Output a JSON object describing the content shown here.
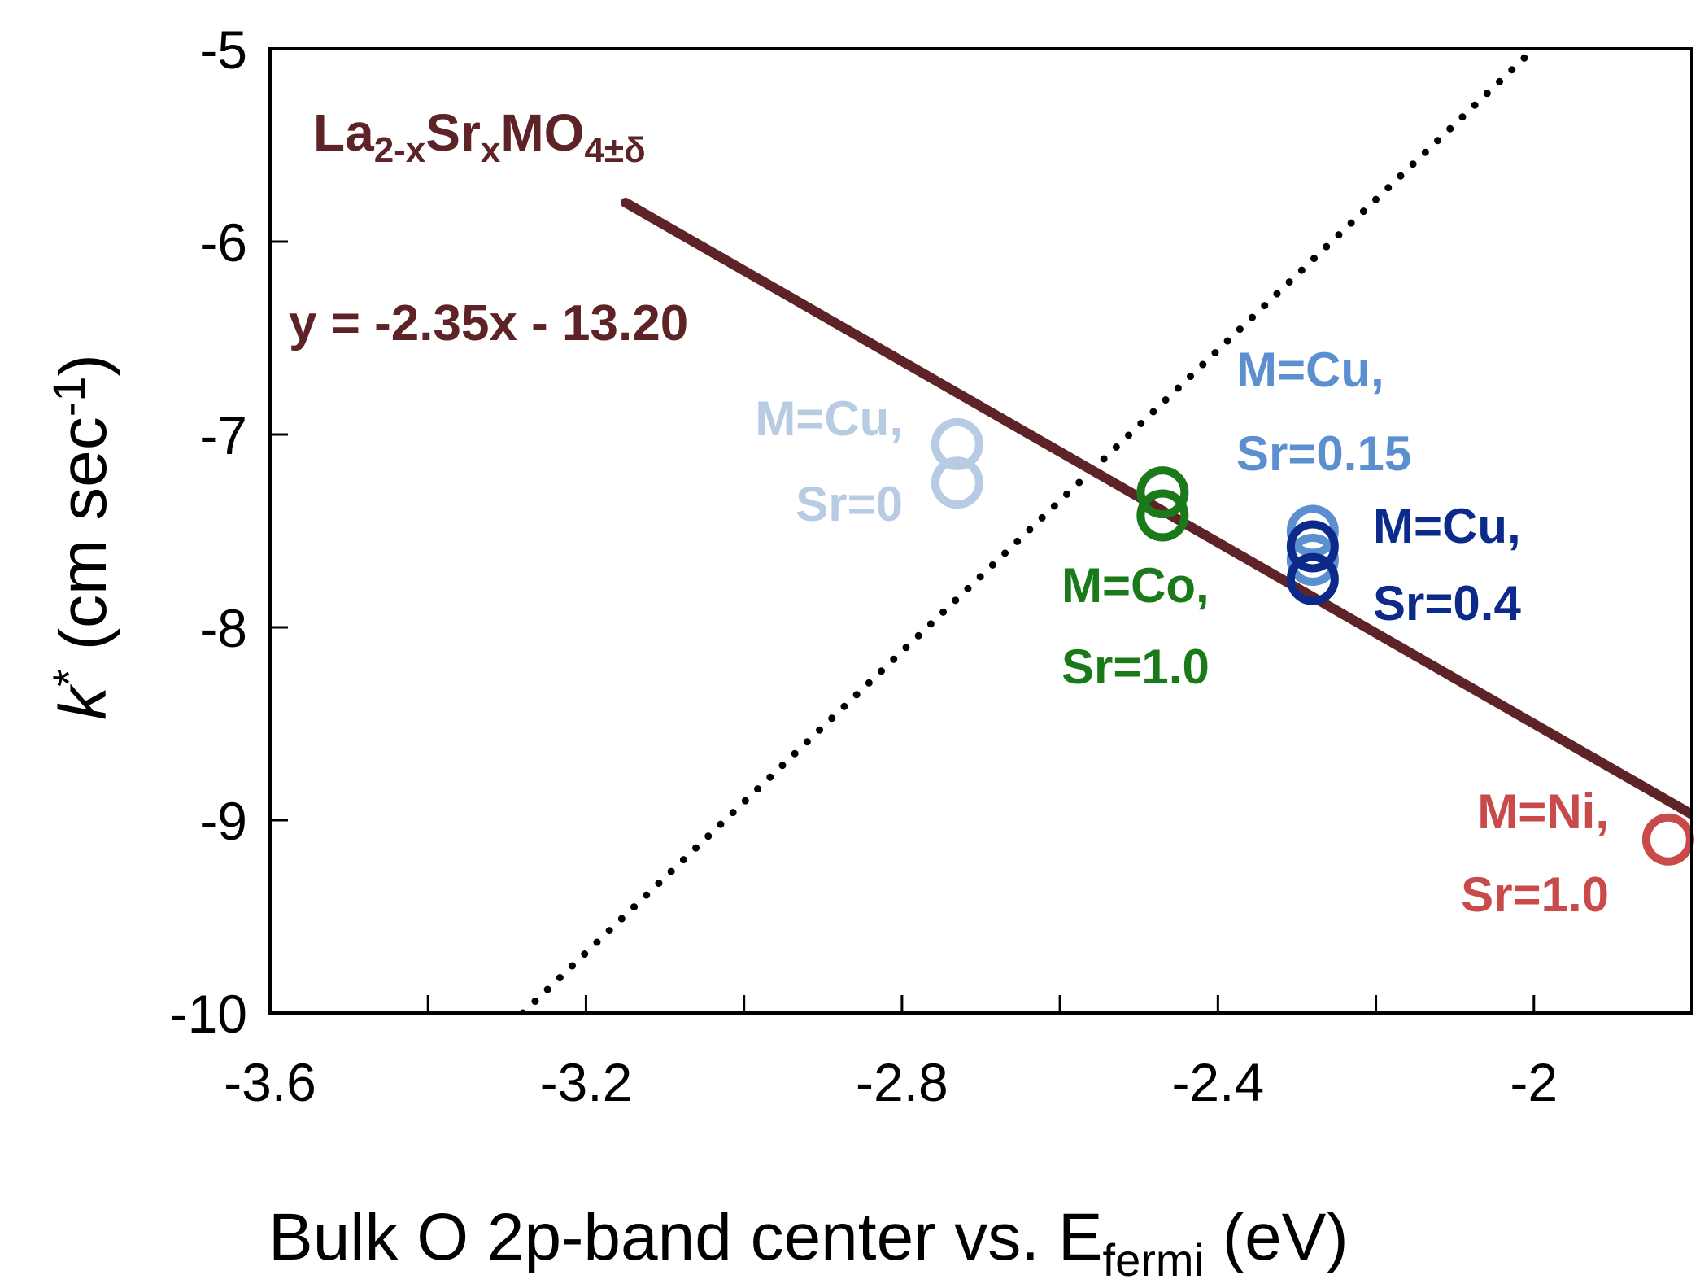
{
  "chart_data": {
    "type": "scatter",
    "title": "",
    "xlabel": "Bulk O 2p-band center vs. E",
    "xlabel_sub": "fermi",
    "xlabel_unit": " (eV)",
    "ylabel_k": "k",
    "ylabel_star": "*",
    "ylabel_units": " (cm sec",
    "ylabel_exp": "-1",
    "ylabel_close": ")",
    "xlim": [
      -3.6,
      -1.8
    ],
    "ylim": [
      -10,
      -5
    ],
    "x_tick_values": [
      -3.6,
      -3.2,
      -2.8,
      -2.4,
      -2.0
    ],
    "x_tick_labels": [
      "-3.6",
      "-3.2",
      "-2.8",
      "-2.4",
      "-2"
    ],
    "x_minor_ticks": [
      -3.4,
      -3.0,
      -2.6,
      -2.2,
      -1.8
    ],
    "y_tick_values": [
      -5,
      -6,
      -7,
      -8,
      -9,
      -10
    ],
    "y_tick_labels": [
      "-5",
      "-6",
      "-7",
      "-8",
      "-9",
      "-10"
    ],
    "fit_line": {
      "x": [
        -3.15,
        -1.8
      ],
      "equation": "y = -2.35x - 13.20",
      "color": "#5e2326"
    },
    "reference_line": {
      "x": [
        -3.28,
        -2.0
      ],
      "y": [
        -10.0,
        -5.0
      ],
      "style": "dotted",
      "color": "#000000"
    },
    "compound_label": {
      "parts": [
        "La",
        "2-x",
        "Sr",
        "x",
        "MO",
        "4±δ"
      ],
      "color": "#5e2326"
    },
    "series": [
      {
        "name": "M=Cu, Sr=0",
        "label_line1": "M=Cu,",
        "label_line2": "Sr=0",
        "color": "#b7cbe3",
        "points": [
          {
            "x": -2.73,
            "y": -7.05
          },
          {
            "x": -2.73,
            "y": -7.25
          }
        ]
      },
      {
        "name": "M=Co, Sr=1.0",
        "label_line1": "M=Co,",
        "label_line2": "Sr=1.0",
        "color": "#1a7a1a",
        "points": [
          {
            "x": -2.47,
            "y": -7.3
          },
          {
            "x": -2.47,
            "y": -7.42
          }
        ]
      },
      {
        "name": "M=Cu, Sr=0.15",
        "label_line1": "M=Cu,",
        "label_line2": "Sr=0.15",
        "color": "#5b8fd0",
        "points": [
          {
            "x": -2.28,
            "y": -7.5
          },
          {
            "x": -2.28,
            "y": -7.65
          }
        ]
      },
      {
        "name": "M=Cu, Sr=0.4",
        "label_line1": "M=Cu,",
        "label_line2": "Sr=0.4",
        "color": "#0c2a8a",
        "points": [
          {
            "x": -2.28,
            "y": -7.58
          },
          {
            "x": -2.28,
            "y": -7.75
          }
        ]
      },
      {
        "name": "M=Ni, Sr=1.0",
        "label_line1": "M=Ni,",
        "label_line2": "Sr=1.0",
        "color": "#c84a4a",
        "points": [
          {
            "x": -1.83,
            "y": -9.1
          }
        ]
      }
    ]
  }
}
